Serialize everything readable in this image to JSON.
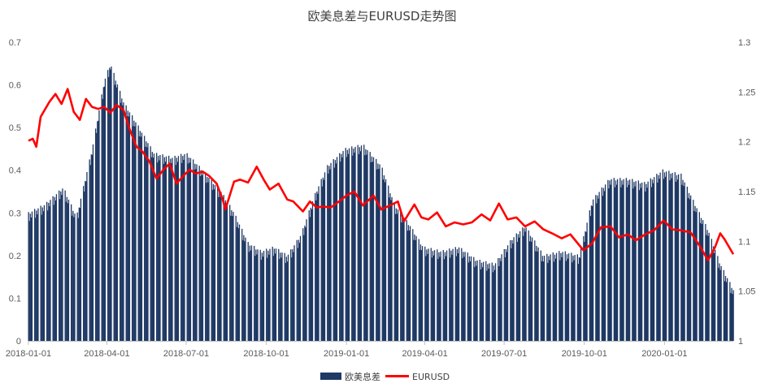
{
  "chart_data": {
    "type": "bar+line",
    "title": "欧美息差与EURUSD走势图",
    "xlabel": "",
    "ylabel_left": "",
    "ylabel_right": "",
    "x_range": [
      "2018-01-01",
      "2020-03-20"
    ],
    "x_ticks": [
      "2018-01-01",
      "2018-04-01",
      "2018-07-01",
      "2018-10-01",
      "2019-01-01",
      "2019-04-01",
      "2019-07-01",
      "2019-10-01",
      "2020-01-01"
    ],
    "y_left": {
      "min": 0,
      "max": 0.7,
      "ticks": [
        "0",
        "0.1",
        "0.2",
        "0.3",
        "0.4",
        "0.5",
        "0.6",
        "0.7"
      ]
    },
    "y_right": {
      "min": 1,
      "max": 1.3,
      "ticks": [
        "1",
        "1.05",
        "1.1",
        "1.15",
        "1.2",
        "1.25",
        "1.3"
      ]
    },
    "grid": false,
    "legend_position": "bottom-center",
    "series": [
      {
        "name": "欧美息差",
        "type": "bar",
        "axis": "left",
        "color": "#1f3864",
        "anchors": [
          [
            "2018-01-01",
            0.29
          ],
          [
            "2018-01-20",
            0.31
          ],
          [
            "2018-02-10",
            0.35
          ],
          [
            "2018-02-25",
            0.28
          ],
          [
            "2018-03-15",
            0.44
          ],
          [
            "2018-03-29",
            0.6
          ],
          [
            "2018-04-05",
            0.64
          ],
          [
            "2018-04-20",
            0.55
          ],
          [
            "2018-05-05",
            0.5
          ],
          [
            "2018-05-25",
            0.43
          ],
          [
            "2018-06-15",
            0.42
          ],
          [
            "2018-07-01",
            0.43
          ],
          [
            "2018-07-20",
            0.39
          ],
          [
            "2018-08-10",
            0.34
          ],
          [
            "2018-08-25",
            0.29
          ],
          [
            "2018-09-10",
            0.22
          ],
          [
            "2018-09-25",
            0.2
          ],
          [
            "2018-10-10",
            0.21
          ],
          [
            "2018-10-25",
            0.19
          ],
          [
            "2018-11-10",
            0.24
          ],
          [
            "2018-11-25",
            0.33
          ],
          [
            "2018-12-10",
            0.4
          ],
          [
            "2018-12-30",
            0.44
          ],
          [
            "2019-01-20",
            0.45
          ],
          [
            "2019-02-10",
            0.4
          ],
          [
            "2019-02-25",
            0.31
          ],
          [
            "2019-03-15",
            0.26
          ],
          [
            "2019-03-30",
            0.21
          ],
          [
            "2019-04-20",
            0.2
          ],
          [
            "2019-05-10",
            0.21
          ],
          [
            "2019-05-30",
            0.18
          ],
          [
            "2019-06-20",
            0.17
          ],
          [
            "2019-07-10",
            0.23
          ],
          [
            "2019-07-25",
            0.26
          ],
          [
            "2019-08-15",
            0.19
          ],
          [
            "2019-09-05",
            0.2
          ],
          [
            "2019-09-25",
            0.19
          ],
          [
            "2019-10-10",
            0.32
          ],
          [
            "2019-10-30",
            0.37
          ],
          [
            "2019-11-20",
            0.37
          ],
          [
            "2019-12-10",
            0.36
          ],
          [
            "2019-12-30",
            0.39
          ],
          [
            "2020-01-20",
            0.38
          ],
          [
            "2020-02-05",
            0.31
          ],
          [
            "2020-02-20",
            0.25
          ],
          [
            "2020-03-05",
            0.17
          ],
          [
            "2020-03-20",
            0.11
          ]
        ]
      },
      {
        "name": "EURUSD",
        "type": "line",
        "axis": "right",
        "color": "#ff0000",
        "anchors": [
          [
            "2018-01-01",
            1.201
          ],
          [
            "2018-01-06",
            1.203
          ],
          [
            "2018-01-10",
            1.195
          ],
          [
            "2018-01-15",
            1.225
          ],
          [
            "2018-01-25",
            1.24
          ],
          [
            "2018-02-01",
            1.248
          ],
          [
            "2018-02-08",
            1.238
          ],
          [
            "2018-02-15",
            1.253
          ],
          [
            "2018-02-22",
            1.23
          ],
          [
            "2018-03-01",
            1.222
          ],
          [
            "2018-03-08",
            1.243
          ],
          [
            "2018-03-15",
            1.235
          ],
          [
            "2018-03-22",
            1.233
          ],
          [
            "2018-03-29",
            1.235
          ],
          [
            "2018-04-05",
            1.229
          ],
          [
            "2018-04-12",
            1.237
          ],
          [
            "2018-04-20",
            1.232
          ],
          [
            "2018-04-27",
            1.213
          ],
          [
            "2018-05-05",
            1.195
          ],
          [
            "2018-05-12",
            1.19
          ],
          [
            "2018-05-20",
            1.18
          ],
          [
            "2018-05-28",
            1.163
          ],
          [
            "2018-06-05",
            1.172
          ],
          [
            "2018-06-12",
            1.178
          ],
          [
            "2018-06-20",
            1.158
          ],
          [
            "2018-06-28",
            1.166
          ],
          [
            "2018-07-05",
            1.172
          ],
          [
            "2018-07-12",
            1.168
          ],
          [
            "2018-07-20",
            1.17
          ],
          [
            "2018-07-27",
            1.166
          ],
          [
            "2018-08-05",
            1.158
          ],
          [
            "2018-08-12",
            1.142
          ],
          [
            "2018-08-15",
            1.132
          ],
          [
            "2018-08-25",
            1.16
          ],
          [
            "2018-09-01",
            1.162
          ],
          [
            "2018-09-10",
            1.159
          ],
          [
            "2018-09-20",
            1.175
          ],
          [
            "2018-09-28",
            1.162
          ],
          [
            "2018-10-05",
            1.152
          ],
          [
            "2018-10-15",
            1.158
          ],
          [
            "2018-10-25",
            1.142
          ],
          [
            "2018-11-01",
            1.14
          ],
          [
            "2018-11-12",
            1.13
          ],
          [
            "2018-11-20",
            1.14
          ],
          [
            "2018-11-28",
            1.134
          ],
          [
            "2018-12-05",
            1.135
          ],
          [
            "2018-12-14",
            1.134
          ],
          [
            "2018-12-25",
            1.141
          ],
          [
            "2019-01-01",
            1.146
          ],
          [
            "2019-01-10",
            1.15
          ],
          [
            "2019-01-20",
            1.136
          ],
          [
            "2019-02-01",
            1.146
          ],
          [
            "2019-02-10",
            1.132
          ],
          [
            "2019-02-20",
            1.136
          ],
          [
            "2019-03-01",
            1.14
          ],
          [
            "2019-03-08",
            1.12
          ],
          [
            "2019-03-20",
            1.137
          ],
          [
            "2019-03-28",
            1.124
          ],
          [
            "2019-04-05",
            1.122
          ],
          [
            "2019-04-15",
            1.129
          ],
          [
            "2019-04-25",
            1.115
          ],
          [
            "2019-05-05",
            1.119
          ],
          [
            "2019-05-15",
            1.117
          ],
          [
            "2019-05-25",
            1.119
          ],
          [
            "2019-06-05",
            1.127
          ],
          [
            "2019-06-15",
            1.121
          ],
          [
            "2019-06-25",
            1.138
          ],
          [
            "2019-07-05",
            1.122
          ],
          [
            "2019-07-15",
            1.124
          ],
          [
            "2019-07-25",
            1.115
          ],
          [
            "2019-08-05",
            1.12
          ],
          [
            "2019-08-15",
            1.112
          ],
          [
            "2019-08-25",
            1.108
          ],
          [
            "2019-09-05",
            1.103
          ],
          [
            "2019-09-15",
            1.107
          ],
          [
            "2019-09-30",
            1.091
          ],
          [
            "2019-10-10",
            1.098
          ],
          [
            "2019-10-20",
            1.114
          ],
          [
            "2019-10-31",
            1.115
          ],
          [
            "2019-11-10",
            1.104
          ],
          [
            "2019-11-20",
            1.107
          ],
          [
            "2019-11-29",
            1.101
          ],
          [
            "2019-12-10",
            1.107
          ],
          [
            "2019-12-20",
            1.111
          ],
          [
            "2019-12-31",
            1.121
          ],
          [
            "2020-01-10",
            1.112
          ],
          [
            "2020-01-20",
            1.111
          ],
          [
            "2020-01-31",
            1.109
          ],
          [
            "2020-02-10",
            1.096
          ],
          [
            "2020-02-20",
            1.081
          ],
          [
            "2020-02-28",
            1.094
          ],
          [
            "2020-03-05",
            1.108
          ],
          [
            "2020-03-10",
            1.102
          ],
          [
            "2020-03-20",
            1.087
          ]
        ]
      }
    ]
  }
}
